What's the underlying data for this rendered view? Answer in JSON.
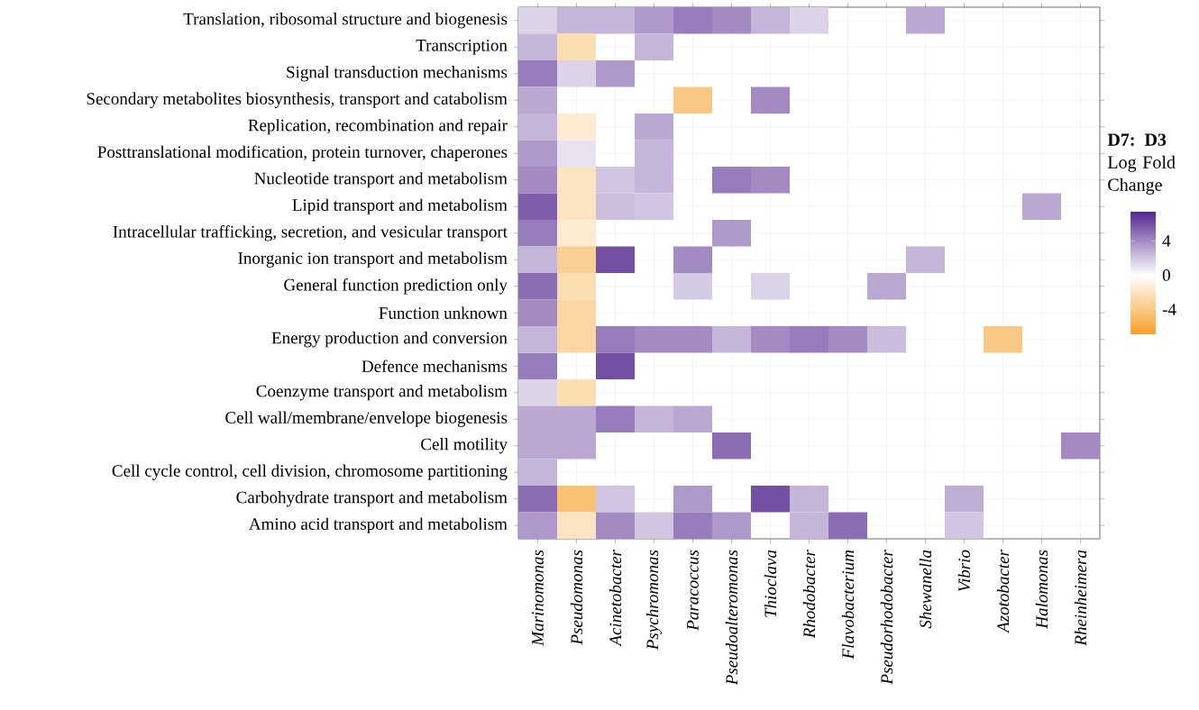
{
  "chart_data": {
    "type": "heatmap",
    "clabel": "**D7: D3** Log Fold Change",
    "categories": [
      "Marinomonas",
      "Pseudomonas",
      "Acinetobacter",
      "Psychromonas",
      "Paracoccus",
      "Pseudoalteromonas",
      "Thioclava",
      "Rhodobacter",
      "Flavobacterium",
      "Pseudorhodobacter",
      "Shewanella",
      "Vibrio",
      "Azotobacter",
      "Halomonas",
      "Rheinheimera"
    ],
    "y_categories": [
      "Translation, ribosomal structure and biogenesis",
      "Transcription",
      "Signal transduction mechanisms",
      "Secondary metabolites biosynthesis, transport and catabolism",
      "Replication, recombination and repair",
      "Posttranslational modification, protein turnover, chaperones",
      "Nucleotide transport and metabolism",
      "Lipid transport and metabolism",
      "Intracellular trafficking, secretion, and vesicular transport",
      "Inorganic ion transport and metabolism",
      "General function prediction only",
      "Function unknown",
      "Energy production and conversion",
      "Defence mechanisms",
      "Coenzyme transport and metabolism",
      "Cell wall/membrane/envelope biogenesis",
      "Cell motility",
      "Cell cycle control, cell division, chromosome partitioning",
      "Carbohydrate transport and metabolism",
      "Amino acid transport and metabolism"
    ],
    "cells": [
      [
        1.5,
        2.5,
        2.5,
        3.5,
        4.5,
        4,
        2.5,
        1.5,
        null,
        null,
        3,
        null,
        null,
        null,
        null
      ],
      [
        2.5,
        -2.5,
        null,
        2.5,
        null,
        null,
        null,
        null,
        null,
        null,
        null,
        null,
        null,
        null,
        null
      ],
      [
        4.5,
        1.5,
        3.5,
        null,
        null,
        null,
        null,
        null,
        null,
        null,
        null,
        null,
        null,
        null,
        null
      ],
      [
        3,
        null,
        null,
        null,
        -4,
        null,
        4,
        null,
        null,
        null,
        null,
        null,
        null,
        null,
        null
      ],
      [
        2.5,
        -1.5,
        null,
        3,
        null,
        null,
        null,
        null,
        null,
        null,
        null,
        null,
        null,
        null,
        null
      ],
      [
        3.5,
        1,
        null,
        2.5,
        null,
        null,
        null,
        null,
        null,
        null,
        null,
        null,
        null,
        null,
        null
      ],
      [
        4,
        -2,
        2,
        2.5,
        null,
        4.5,
        4,
        null,
        null,
        null,
        null,
        null,
        null,
        null,
        null
      ],
      [
        5.5,
        -2,
        2.2,
        2,
        null,
        null,
        null,
        null,
        null,
        null,
        null,
        null,
        null,
        3,
        null
      ],
      [
        4.5,
        -1.5,
        null,
        null,
        null,
        3.5,
        null,
        null,
        null,
        null,
        null,
        null,
        null,
        null,
        null
      ],
      [
        2.5,
        -3.5,
        6,
        null,
        4,
        null,
        null,
        null,
        null,
        null,
        2.5,
        null,
        null,
        null,
        null
      ],
      [
        5,
        -2.5,
        null,
        null,
        1.8,
        null,
        1.5,
        null,
        null,
        3,
        null,
        null,
        null,
        null,
        null
      ],
      [
        4,
        -3,
        null,
        null,
        null,
        null,
        null,
        null,
        null,
        null,
        null,
        null,
        null,
        null,
        null
      ],
      [
        2.5,
        -3,
        4.5,
        4,
        4,
        2.5,
        4,
        4.5,
        4,
        2.3,
        null,
        null,
        -4,
        null,
        null
      ],
      [
        4.5,
        null,
        6,
        null,
        null,
        null,
        null,
        null,
        null,
        null,
        null,
        null,
        null,
        null,
        null
      ],
      [
        1.5,
        -2.5,
        null,
        null,
        null,
        null,
        null,
        null,
        null,
        null,
        null,
        null,
        null,
        null,
        null
      ],
      [
        3,
        3,
        4.5,
        2.5,
        3,
        null,
        null,
        null,
        null,
        null,
        null,
        null,
        null,
        null,
        null
      ],
      [
        3,
        3,
        null,
        null,
        null,
        5,
        null,
        null,
        null,
        null,
        null,
        null,
        null,
        null,
        4
      ],
      [
        2.5,
        null,
        null,
        null,
        null,
        null,
        null,
        null,
        null,
        null,
        null,
        null,
        null,
        null,
        null
      ],
      [
        5,
        -4.5,
        2,
        null,
        3.5,
        null,
        6,
        2.5,
        null,
        null,
        null,
        2.8,
        null,
        null,
        null
      ],
      [
        3.5,
        -2,
        4,
        2,
        4.5,
        3.5,
        null,
        2.5,
        5,
        null,
        null,
        2,
        null,
        null,
        null
      ]
    ],
    "clim": [
      -6.9,
      7.4
    ],
    "cticks": [
      -4,
      0,
      4
    ],
    "grid": true
  }
}
